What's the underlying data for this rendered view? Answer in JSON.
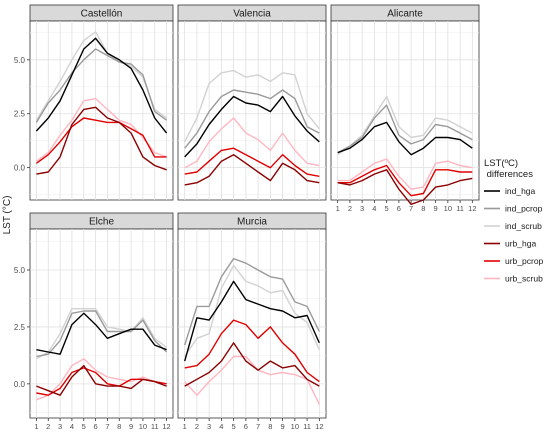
{
  "chart_data": {
    "type": "line",
    "ylabel": "LST (°C)",
    "x": [
      1,
      2,
      3,
      4,
      5,
      6,
      7,
      8,
      9,
      10,
      11,
      12
    ],
    "ylim": [
      -1.5,
      6.8
    ],
    "yticks": [
      0.0,
      2.5,
      5.0
    ],
    "ytick_labels": [
      "0.0",
      "2.5",
      "5.0"
    ],
    "grid": true,
    "legend": {
      "title": "LST(ºC)\n differences",
      "placement": "right",
      "entries": [
        {
          "name": "ind_hga",
          "color": "#000000"
        },
        {
          "name": "ind_pcrop",
          "color": "#9a9a9a"
        },
        {
          "name": "ind_scrub",
          "color": "#d2d2d2"
        },
        {
          "name": "urb_hga",
          "color": "#8b0000"
        },
        {
          "name": "urb_pcrop",
          "color": "#e00000"
        },
        {
          "name": "urb_scrub",
          "color": "#ffb6c1"
        }
      ]
    },
    "panels": [
      {
        "title": "Castellón",
        "series": {
          "ind_hga": [
            1.7,
            2.3,
            3.1,
            4.3,
            5.5,
            6.0,
            5.3,
            5.0,
            4.6,
            3.6,
            2.3,
            1.6
          ],
          "ind_pcrop": [
            2.1,
            3.0,
            3.6,
            4.4,
            5.0,
            5.5,
            5.2,
            4.9,
            4.8,
            4.3,
            2.6,
            2.2
          ],
          "ind_scrub": [
            2.2,
            3.1,
            4.0,
            5.0,
            5.9,
            6.3,
            5.3,
            4.9,
            4.7,
            4.2,
            2.7,
            2.3
          ],
          "urb_hga": [
            -0.3,
            -0.2,
            0.5,
            2.0,
            2.7,
            2.8,
            2.3,
            2.1,
            1.6,
            0.5,
            0.1,
            -0.1
          ],
          "urb_pcrop": [
            0.2,
            0.6,
            1.2,
            1.9,
            2.3,
            2.2,
            2.1,
            2.1,
            1.8,
            1.5,
            0.5,
            0.5
          ],
          "urb_scrub": [
            0.3,
            0.7,
            1.5,
            2.2,
            3.1,
            3.2,
            2.7,
            2.2,
            2.0,
            1.4,
            0.7,
            0.5
          ]
        }
      },
      {
        "title": "Valencia",
        "series": {
          "ind_hga": [
            0.5,
            1.1,
            2.0,
            2.7,
            3.3,
            3.0,
            2.9,
            2.6,
            3.3,
            2.4,
            1.7,
            1.2
          ],
          "ind_pcrop": [
            0.9,
            1.6,
            2.6,
            3.3,
            3.6,
            3.5,
            3.4,
            3.2,
            3.6,
            3.2,
            1.9,
            1.6
          ],
          "ind_scrub": [
            1.2,
            2.3,
            3.9,
            4.4,
            4.5,
            4.2,
            4.3,
            4.0,
            4.4,
            4.3,
            2.5,
            1.8
          ],
          "urb_hga": [
            -0.8,
            -0.7,
            -0.4,
            0.3,
            0.6,
            0.2,
            -0.2,
            -0.6,
            0.2,
            -0.1,
            -0.6,
            -0.7
          ],
          "urb_pcrop": [
            -0.3,
            -0.2,
            0.3,
            0.8,
            0.9,
            0.6,
            0.3,
            0.0,
            0.6,
            0.1,
            -0.3,
            -0.4
          ],
          "urb_scrub": [
            0.0,
            0.3,
            1.2,
            1.8,
            2.3,
            1.6,
            1.3,
            0.8,
            1.6,
            0.8,
            0.2,
            0.1
          ]
        }
      },
      {
        "title": "Alicante",
        "series": {
          "ind_hga": [
            0.7,
            0.9,
            1.3,
            1.9,
            2.1,
            1.2,
            0.6,
            0.9,
            1.4,
            1.4,
            1.3,
            0.9
          ],
          "ind_pcrop": [
            0.7,
            1.0,
            1.4,
            2.3,
            2.9,
            1.5,
            1.1,
            1.3,
            2.0,
            1.9,
            1.6,
            1.3
          ],
          "ind_scrub": [
            0.6,
            1.0,
            1.5,
            2.4,
            3.3,
            1.9,
            1.4,
            1.5,
            2.3,
            2.2,
            1.9,
            1.6
          ],
          "urb_hga": [
            -0.7,
            -0.8,
            -0.6,
            -0.3,
            -0.1,
            -1.0,
            -1.7,
            -1.5,
            -0.9,
            -0.8,
            -0.6,
            -0.5
          ],
          "urb_pcrop": [
            -0.7,
            -0.7,
            -0.4,
            -0.1,
            0.1,
            -0.7,
            -1.3,
            -1.2,
            -0.1,
            -0.1,
            -0.2,
            -0.2
          ],
          "urb_scrub": [
            -0.6,
            -0.6,
            -0.2,
            0.2,
            0.4,
            -0.4,
            -1.0,
            -0.9,
            0.2,
            0.3,
            0.1,
            0.0
          ]
        }
      },
      {
        "title": "Elche",
        "series": {
          "ind_hga": [
            1.5,
            1.4,
            1.3,
            2.6,
            3.1,
            2.6,
            2.0,
            2.2,
            2.4,
            2.4,
            1.7,
            1.5
          ],
          "ind_pcrop": [
            1.2,
            1.3,
            1.9,
            3.1,
            3.2,
            3.2,
            2.3,
            2.3,
            2.3,
            2.8,
            1.9,
            1.4
          ],
          "ind_scrub": [
            1.1,
            1.4,
            2.2,
            3.3,
            3.3,
            3.3,
            2.5,
            2.4,
            2.3,
            2.9,
            2.0,
            1.6
          ],
          "urb_hga": [
            -0.1,
            -0.3,
            -0.5,
            0.3,
            0.8,
            0.0,
            -0.1,
            -0.1,
            -0.2,
            0.2,
            0.1,
            -0.1
          ],
          "urb_pcrop": [
            -0.4,
            -0.5,
            -0.2,
            0.5,
            0.7,
            0.5,
            0.0,
            -0.1,
            0.2,
            0.2,
            0.1,
            0.0
          ],
          "urb_scrub": [
            -0.7,
            -0.5,
            0.0,
            0.8,
            1.1,
            0.6,
            0.3,
            0.2,
            0.1,
            0.3,
            0.1,
            -0.1
          ]
        }
      },
      {
        "title": "Murcia",
        "series": {
          "ind_hga": [
            1.0,
            2.9,
            2.8,
            3.6,
            4.5,
            3.7,
            3.5,
            3.3,
            3.2,
            2.9,
            3.0,
            1.8
          ],
          "ind_pcrop": [
            1.7,
            3.4,
            3.4,
            4.7,
            5.5,
            5.3,
            5.0,
            4.7,
            4.6,
            3.6,
            3.4,
            2.3
          ],
          "ind_scrub": [
            1.2,
            2.0,
            2.2,
            4.2,
            5.2,
            4.5,
            4.3,
            4.0,
            4.1,
            3.1,
            2.7,
            1.5
          ],
          "urb_hga": [
            -0.1,
            0.2,
            0.5,
            1.0,
            1.8,
            1.0,
            0.6,
            1.0,
            0.7,
            0.8,
            0.2,
            -0.1
          ],
          "urb_pcrop": [
            0.7,
            0.8,
            1.3,
            2.2,
            2.8,
            2.6,
            2.0,
            2.5,
            1.8,
            1.3,
            0.5,
            0.1
          ],
          "urb_scrub": [
            0.1,
            -0.5,
            0.1,
            0.6,
            1.2,
            1.2,
            0.6,
            0.4,
            0.5,
            0.4,
            0.2,
            -0.9
          ]
        }
      }
    ]
  }
}
